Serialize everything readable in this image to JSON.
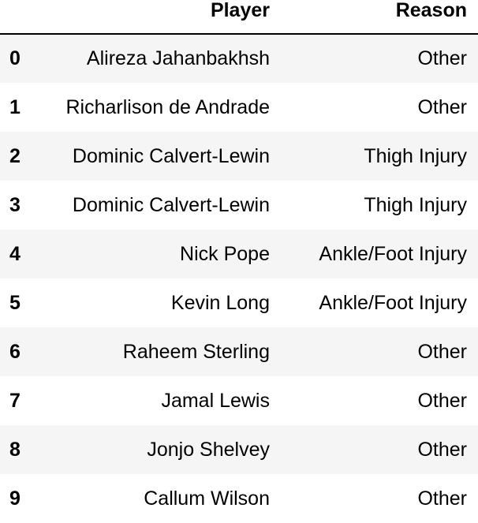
{
  "table": {
    "columns": [
      "Player",
      "Reason"
    ],
    "rows": [
      {
        "index": "0",
        "player": "Alireza Jahanbakhsh",
        "reason": "Other"
      },
      {
        "index": "1",
        "player": "Richarlison de Andrade",
        "reason": "Other"
      },
      {
        "index": "2",
        "player": "Dominic Calvert-Lewin",
        "reason": "Thigh Injury"
      },
      {
        "index": "3",
        "player": "Dominic Calvert-Lewin",
        "reason": "Thigh Injury"
      },
      {
        "index": "4",
        "player": "Nick Pope",
        "reason": "Ankle/Foot Injury"
      },
      {
        "index": "5",
        "player": "Kevin Long",
        "reason": "Ankle/Foot Injury"
      },
      {
        "index": "6",
        "player": "Raheem Sterling",
        "reason": "Other"
      },
      {
        "index": "7",
        "player": "Jamal Lewis",
        "reason": "Other"
      },
      {
        "index": "8",
        "player": "Jonjo Shelvey",
        "reason": "Other"
      },
      {
        "index": "9",
        "player": "Callum Wilson",
        "reason": "Other"
      }
    ]
  }
}
